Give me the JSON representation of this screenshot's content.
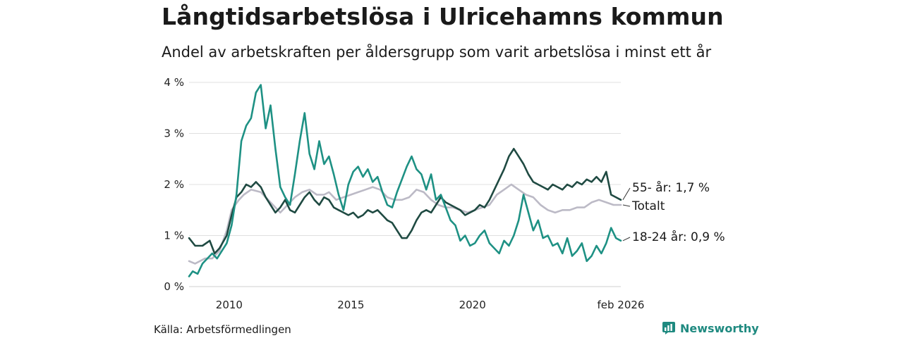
{
  "title": "Långtidsarbetslösa i Ulricehamns kommun",
  "subtitle": "Andel av arbetskraften per åldersgrupp som varit arbetslösa i minst ett år",
  "source": "Källa: Arbetsförmedlingen",
  "brand": "Newsworthy",
  "chart_data": {
    "type": "line",
    "title": "Långtidsarbetslösa i Ulricehamns kommun",
    "ylabel": "",
    "xlabel": "",
    "x_range": [
      2008.35,
      2026.1
    ],
    "ylim": [
      0,
      4
    ],
    "y_ticks": [
      {
        "value": 0,
        "label": "0 %"
      },
      {
        "value": 1,
        "label": "1 %"
      },
      {
        "value": 2,
        "label": "2 %"
      },
      {
        "value": 3,
        "label": "3 %"
      },
      {
        "value": 4,
        "label": "4 %"
      }
    ],
    "x_ticks": [
      {
        "value": 2010,
        "label": "2010"
      },
      {
        "value": 2015,
        "label": "2015"
      },
      {
        "value": 2020,
        "label": "2020"
      },
      {
        "value": 2026.1,
        "label": "feb 2026"
      }
    ],
    "grid": true,
    "series": [
      {
        "name": "Totalt",
        "end_label": "Totalt",
        "color": "#bcbac6",
        "points": [
          [
            2008.35,
            0.5
          ],
          [
            2008.6,
            0.45
          ],
          [
            2009.0,
            0.55
          ],
          [
            2009.3,
            0.55
          ],
          [
            2009.6,
            0.7
          ],
          [
            2009.9,
            1.1
          ],
          [
            2010.1,
            1.5
          ],
          [
            2010.4,
            1.7
          ],
          [
            2010.6,
            1.8
          ],
          [
            2010.9,
            1.9
          ],
          [
            2011.3,
            1.85
          ],
          [
            2011.6,
            1.7
          ],
          [
            2011.9,
            1.55
          ],
          [
            2012.1,
            1.45
          ],
          [
            2012.4,
            1.6
          ],
          [
            2012.7,
            1.75
          ],
          [
            2013.0,
            1.85
          ],
          [
            2013.3,
            1.9
          ],
          [
            2013.6,
            1.8
          ],
          [
            2013.9,
            1.8
          ],
          [
            2014.1,
            1.85
          ],
          [
            2014.4,
            1.7
          ],
          [
            2014.7,
            1.75
          ],
          [
            2015.0,
            1.8
          ],
          [
            2015.3,
            1.85
          ],
          [
            2015.6,
            1.9
          ],
          [
            2015.9,
            1.95
          ],
          [
            2016.2,
            1.9
          ],
          [
            2016.5,
            1.75
          ],
          [
            2016.8,
            1.7
          ],
          [
            2017.1,
            1.7
          ],
          [
            2017.4,
            1.75
          ],
          [
            2017.7,
            1.9
          ],
          [
            2018.0,
            1.85
          ],
          [
            2018.3,
            1.7
          ],
          [
            2018.6,
            1.6
          ],
          [
            2018.9,
            1.55
          ],
          [
            2019.2,
            1.55
          ],
          [
            2019.5,
            1.5
          ],
          [
            2019.8,
            1.45
          ],
          [
            2020.1,
            1.5
          ],
          [
            2020.4,
            1.55
          ],
          [
            2020.7,
            1.6
          ],
          [
            2021.0,
            1.8
          ],
          [
            2021.3,
            1.9
          ],
          [
            2021.6,
            2.0
          ],
          [
            2021.9,
            1.9
          ],
          [
            2022.2,
            1.8
          ],
          [
            2022.5,
            1.75
          ],
          [
            2022.8,
            1.6
          ],
          [
            2023.1,
            1.5
          ],
          [
            2023.4,
            1.45
          ],
          [
            2023.7,
            1.5
          ],
          [
            2024.0,
            1.5
          ],
          [
            2024.3,
            1.55
          ],
          [
            2024.6,
            1.55
          ],
          [
            2024.9,
            1.65
          ],
          [
            2025.2,
            1.7
          ],
          [
            2025.5,
            1.65
          ],
          [
            2025.8,
            1.6
          ],
          [
            2026.1,
            1.6
          ]
        ]
      },
      {
        "name": "55- år",
        "end_label": "55- år: 1,7 %",
        "color": "#1f4a42",
        "points": [
          [
            2008.35,
            0.95
          ],
          [
            2008.6,
            0.8
          ],
          [
            2008.9,
            0.8
          ],
          [
            2009.2,
            0.9
          ],
          [
            2009.4,
            0.65
          ],
          [
            2009.6,
            0.75
          ],
          [
            2009.9,
            1.0
          ],
          [
            2010.1,
            1.4
          ],
          [
            2010.3,
            1.75
          ],
          [
            2010.5,
            1.85
          ],
          [
            2010.7,
            2.0
          ],
          [
            2010.9,
            1.95
          ],
          [
            2011.1,
            2.05
          ],
          [
            2011.3,
            1.95
          ],
          [
            2011.5,
            1.75
          ],
          [
            2011.7,
            1.6
          ],
          [
            2011.9,
            1.45
          ],
          [
            2012.1,
            1.55
          ],
          [
            2012.3,
            1.7
          ],
          [
            2012.5,
            1.5
          ],
          [
            2012.7,
            1.45
          ],
          [
            2012.9,
            1.6
          ],
          [
            2013.1,
            1.75
          ],
          [
            2013.3,
            1.85
          ],
          [
            2013.5,
            1.7
          ],
          [
            2013.7,
            1.6
          ],
          [
            2013.9,
            1.75
          ],
          [
            2014.1,
            1.7
          ],
          [
            2014.3,
            1.55
          ],
          [
            2014.5,
            1.5
          ],
          [
            2014.7,
            1.45
          ],
          [
            2014.9,
            1.4
          ],
          [
            2015.1,
            1.45
          ],
          [
            2015.3,
            1.35
          ],
          [
            2015.5,
            1.4
          ],
          [
            2015.7,
            1.5
          ],
          [
            2015.9,
            1.45
          ],
          [
            2016.1,
            1.5
          ],
          [
            2016.3,
            1.4
          ],
          [
            2016.5,
            1.3
          ],
          [
            2016.7,
            1.25
          ],
          [
            2016.9,
            1.1
          ],
          [
            2017.1,
            0.95
          ],
          [
            2017.3,
            0.95
          ],
          [
            2017.5,
            1.1
          ],
          [
            2017.7,
            1.3
          ],
          [
            2017.9,
            1.45
          ],
          [
            2018.1,
            1.5
          ],
          [
            2018.3,
            1.45
          ],
          [
            2018.5,
            1.6
          ],
          [
            2018.7,
            1.75
          ],
          [
            2018.9,
            1.65
          ],
          [
            2019.1,
            1.6
          ],
          [
            2019.3,
            1.55
          ],
          [
            2019.5,
            1.5
          ],
          [
            2019.7,
            1.4
          ],
          [
            2019.9,
            1.45
          ],
          [
            2020.1,
            1.5
          ],
          [
            2020.3,
            1.6
          ],
          [
            2020.5,
            1.55
          ],
          [
            2020.7,
            1.7
          ],
          [
            2020.9,
            1.9
          ],
          [
            2021.1,
            2.1
          ],
          [
            2021.3,
            2.3
          ],
          [
            2021.5,
            2.55
          ],
          [
            2021.7,
            2.7
          ],
          [
            2021.9,
            2.55
          ],
          [
            2022.1,
            2.4
          ],
          [
            2022.3,
            2.2
          ],
          [
            2022.5,
            2.05
          ],
          [
            2022.7,
            2.0
          ],
          [
            2022.9,
            1.95
          ],
          [
            2023.1,
            1.9
          ],
          [
            2023.3,
            2.0
          ],
          [
            2023.5,
            1.95
          ],
          [
            2023.7,
            1.9
          ],
          [
            2023.9,
            2.0
          ],
          [
            2024.1,
            1.95
          ],
          [
            2024.3,
            2.05
          ],
          [
            2024.5,
            2.0
          ],
          [
            2024.7,
            2.1
          ],
          [
            2024.9,
            2.05
          ],
          [
            2025.1,
            2.15
          ],
          [
            2025.3,
            2.05
          ],
          [
            2025.5,
            2.25
          ],
          [
            2025.7,
            1.8
          ],
          [
            2025.9,
            1.75
          ],
          [
            2026.1,
            1.7
          ]
        ]
      },
      {
        "name": "18-24 år",
        "end_label": "18-24 år: 0,9 %",
        "color": "#1e9184",
        "points": [
          [
            2008.35,
            0.2
          ],
          [
            2008.5,
            0.3
          ],
          [
            2008.7,
            0.25
          ],
          [
            2008.9,
            0.45
          ],
          [
            2009.1,
            0.55
          ],
          [
            2009.3,
            0.65
          ],
          [
            2009.5,
            0.55
          ],
          [
            2009.7,
            0.7
          ],
          [
            2009.9,
            0.85
          ],
          [
            2010.1,
            1.2
          ],
          [
            2010.3,
            1.8
          ],
          [
            2010.5,
            2.85
          ],
          [
            2010.7,
            3.15
          ],
          [
            2010.9,
            3.3
          ],
          [
            2011.1,
            3.8
          ],
          [
            2011.3,
            3.95
          ],
          [
            2011.5,
            3.1
          ],
          [
            2011.7,
            3.55
          ],
          [
            2011.9,
            2.7
          ],
          [
            2012.1,
            1.95
          ],
          [
            2012.3,
            1.75
          ],
          [
            2012.5,
            1.6
          ],
          [
            2012.7,
            2.2
          ],
          [
            2012.9,
            2.85
          ],
          [
            2013.1,
            3.4
          ],
          [
            2013.3,
            2.6
          ],
          [
            2013.5,
            2.3
          ],
          [
            2013.7,
            2.85
          ],
          [
            2013.9,
            2.4
          ],
          [
            2014.1,
            2.55
          ],
          [
            2014.3,
            2.2
          ],
          [
            2014.5,
            1.8
          ],
          [
            2014.7,
            1.5
          ],
          [
            2014.9,
            2.0
          ],
          [
            2015.1,
            2.25
          ],
          [
            2015.3,
            2.35
          ],
          [
            2015.5,
            2.15
          ],
          [
            2015.7,
            2.3
          ],
          [
            2015.9,
            2.05
          ],
          [
            2016.1,
            2.15
          ],
          [
            2016.3,
            1.85
          ],
          [
            2016.5,
            1.6
          ],
          [
            2016.7,
            1.55
          ],
          [
            2016.9,
            1.85
          ],
          [
            2017.1,
            2.1
          ],
          [
            2017.3,
            2.35
          ],
          [
            2017.5,
            2.55
          ],
          [
            2017.7,
            2.3
          ],
          [
            2017.9,
            2.2
          ],
          [
            2018.1,
            1.9
          ],
          [
            2018.3,
            2.2
          ],
          [
            2018.5,
            1.7
          ],
          [
            2018.7,
            1.8
          ],
          [
            2018.9,
            1.55
          ],
          [
            2019.1,
            1.3
          ],
          [
            2019.3,
            1.2
          ],
          [
            2019.5,
            0.9
          ],
          [
            2019.7,
            1.0
          ],
          [
            2019.9,
            0.8
          ],
          [
            2020.1,
            0.85
          ],
          [
            2020.3,
            1.0
          ],
          [
            2020.5,
            1.1
          ],
          [
            2020.7,
            0.85
          ],
          [
            2020.9,
            0.75
          ],
          [
            2021.1,
            0.65
          ],
          [
            2021.3,
            0.9
          ],
          [
            2021.5,
            0.8
          ],
          [
            2021.7,
            1.0
          ],
          [
            2021.9,
            1.3
          ],
          [
            2022.1,
            1.8
          ],
          [
            2022.3,
            1.45
          ],
          [
            2022.5,
            1.1
          ],
          [
            2022.7,
            1.3
          ],
          [
            2022.9,
            0.95
          ],
          [
            2023.1,
            1.0
          ],
          [
            2023.3,
            0.8
          ],
          [
            2023.5,
            0.85
          ],
          [
            2023.7,
            0.65
          ],
          [
            2023.9,
            0.95
          ],
          [
            2024.1,
            0.6
          ],
          [
            2024.3,
            0.7
          ],
          [
            2024.5,
            0.85
          ],
          [
            2024.7,
            0.5
          ],
          [
            2024.9,
            0.6
          ],
          [
            2025.1,
            0.8
          ],
          [
            2025.3,
            0.65
          ],
          [
            2025.5,
            0.85
          ],
          [
            2025.7,
            1.15
          ],
          [
            2025.9,
            0.95
          ],
          [
            2026.1,
            0.9
          ]
        ]
      }
    ]
  }
}
